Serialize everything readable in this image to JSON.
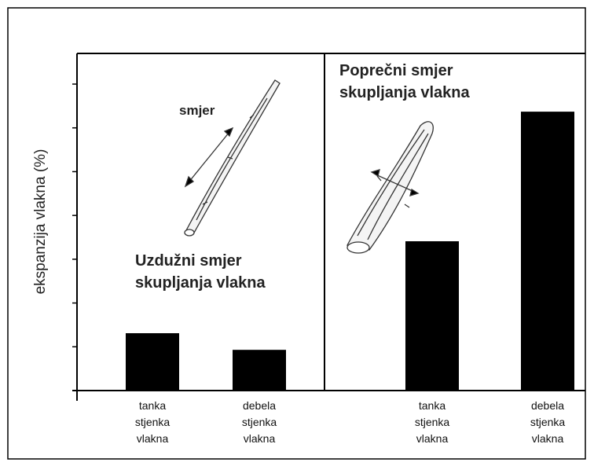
{
  "chart_data": [
    {
      "type": "bar",
      "ylabel": "ekspanzija vlakna (%)",
      "annotation": "Uzdužni smjer\nskupljanja vlakna",
      "arrow_label": "smjer",
      "categories": [
        "tanka\nstjenka\nvlakna",
        "debela\nstjenka\nvlakna"
      ],
      "values": [
        1.31,
        0.93
      ],
      "color": "#000000",
      "ylim": [
        0,
        7.7
      ],
      "yticks": [
        0,
        1,
        2,
        3,
        4,
        5,
        6,
        7
      ]
    },
    {
      "type": "bar",
      "annotation": "Poprečni smjer\nskupljanja vlakna",
      "categories": [
        "tanka\nstjenka\nvlakna",
        "debela\nstjenka\nvlakna"
      ],
      "values": [
        3.41,
        6.37
      ],
      "color": "#000000",
      "ylim": [
        0,
        7.7
      ]
    }
  ]
}
